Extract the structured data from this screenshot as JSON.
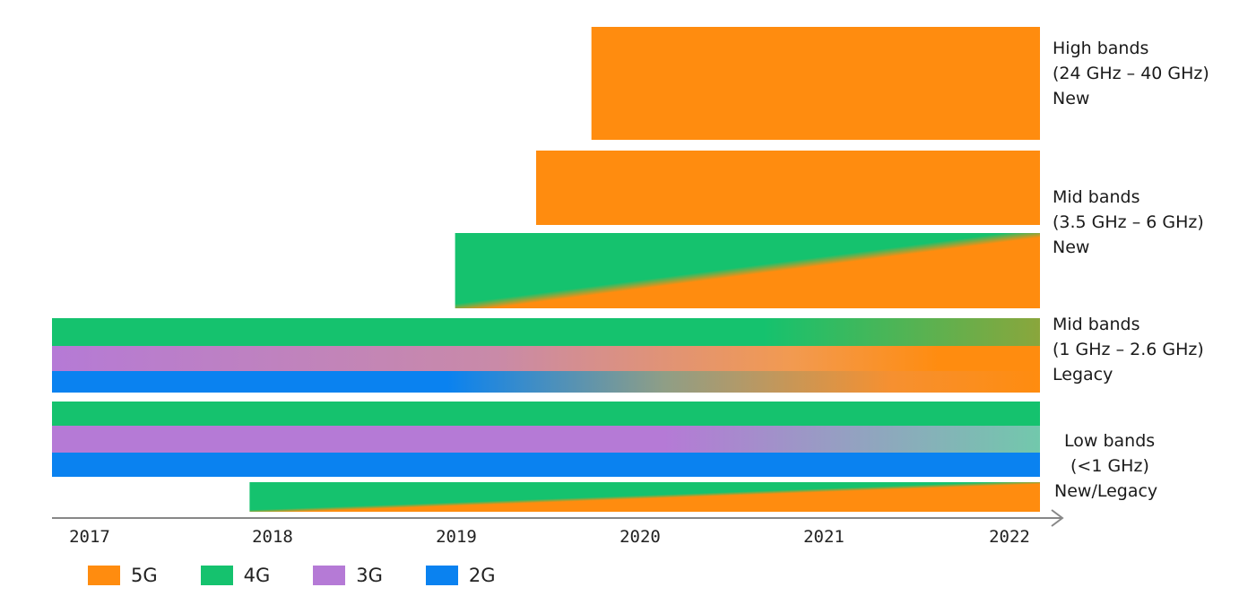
{
  "colors": {
    "5G": "#ff8c0f",
    "4G": "#15c26e",
    "3G": "#b57ad6",
    "2G": "#0a82f0"
  },
  "chart_data": {
    "type": "area",
    "title": "",
    "xlabel": "",
    "ylabel": "",
    "xlim": [
      2017,
      2022
    ],
    "x_ticks": [
      "2017",
      "2018",
      "2019",
      "2020",
      "2021",
      "2022"
    ],
    "legend": [
      {
        "name": "5G",
        "color": "#ff8c0f"
      },
      {
        "name": "4G",
        "color": "#15c26e"
      },
      {
        "name": "3G",
        "color": "#b57ad6"
      },
      {
        "name": "2G",
        "color": "#0a82f0"
      }
    ],
    "legend_placement": "bottom-left",
    "band_groups": [
      {
        "label_lines": [
          "High bands",
          "(24 GHz – 40 GHz)",
          "New"
        ]
      },
      {
        "label_lines": [
          "Mid bands",
          "(3.5 GHz – 6 GHz)",
          "New"
        ]
      },
      {
        "label_lines": [
          "Mid bands",
          "(1 GHz – 2.6 GHz)",
          "Legacy"
        ]
      },
      {
        "label_lines": [
          "Low bands",
          "(<1 GHz)",
          "New/Legacy"
        ]
      }
    ],
    "bars": [
      {
        "id": "high-5g",
        "start": 2019.73,
        "end": 2022,
        "tech": [
          "5G"
        ]
      },
      {
        "id": "mid-new-5g",
        "start": 2019.45,
        "end": 2022,
        "tech": [
          "5G"
        ]
      },
      {
        "id": "mid-new-4g-to-5g",
        "start": 2019.04,
        "end": 2022,
        "tech": [
          "4G",
          "5G"
        ]
      },
      {
        "id": "mid-legacy-4g",
        "start": 2017,
        "end": 2022,
        "tech": [
          "4G",
          "5G"
        ]
      },
      {
        "id": "mid-legacy-3g",
        "start": 2017,
        "end": 2022,
        "tech": [
          "3G",
          "5G"
        ]
      },
      {
        "id": "mid-legacy-2g",
        "start": 2017,
        "end": 2022,
        "tech": [
          "2G",
          "5G"
        ]
      },
      {
        "id": "low-4g",
        "start": 2017,
        "end": 2022,
        "tech": [
          "4G"
        ]
      },
      {
        "id": "low-3g",
        "start": 2017,
        "end": 2022,
        "tech": [
          "3G",
          "4G"
        ]
      },
      {
        "id": "low-2g",
        "start": 2017,
        "end": 2022,
        "tech": [
          "2G"
        ]
      },
      {
        "id": "low-new-4g-to-5g",
        "start": 2018,
        "end": 2022,
        "tech": [
          "4G",
          "5G"
        ]
      }
    ]
  }
}
